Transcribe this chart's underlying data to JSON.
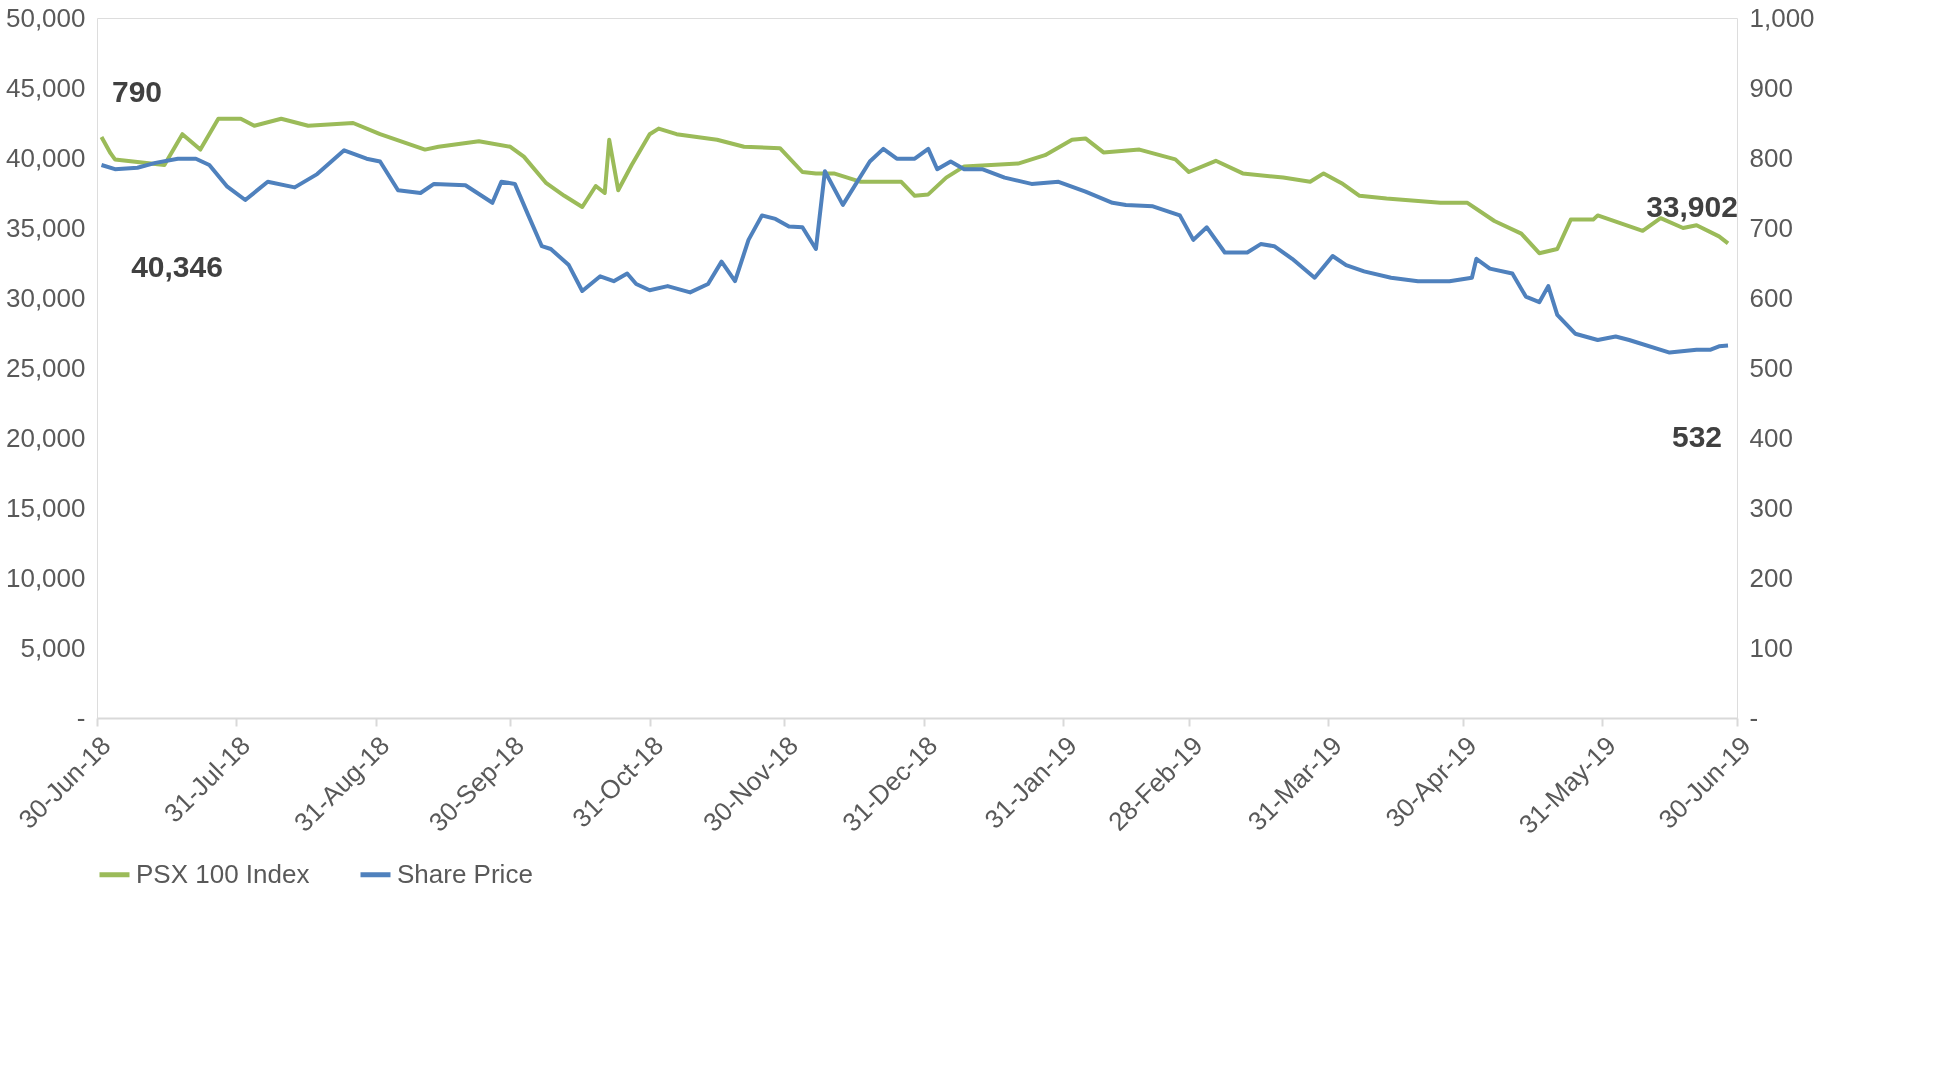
{
  "chart_data": {
    "type": "line",
    "xlim": [
      "2018-06-30",
      "2019-06-30"
    ],
    "xticks": [
      {
        "value": "2018-06-30",
        "label": "30-Jun-18"
      },
      {
        "value": "2018-07-31",
        "label": "31-Jul-18"
      },
      {
        "value": "2018-08-31",
        "label": "31-Aug-18"
      },
      {
        "value": "2018-09-30",
        "label": "30-Sep-18"
      },
      {
        "value": "2018-10-31",
        "label": "31-Oct-18"
      },
      {
        "value": "2018-11-30",
        "label": "30-Nov-18"
      },
      {
        "value": "2018-12-31",
        "label": "31-Dec-18"
      },
      {
        "value": "2019-01-31",
        "label": "31-Jan-19"
      },
      {
        "value": "2019-02-28",
        "label": "28-Feb-19"
      },
      {
        "value": "2019-03-31",
        "label": "31-Mar-19"
      },
      {
        "value": "2019-04-30",
        "label": "30-Apr-19"
      },
      {
        "value": "2019-05-31",
        "label": "31-May-19"
      },
      {
        "value": "2019-06-30",
        "label": "30-Jun-19"
      }
    ],
    "ylim": [
      0,
      50000
    ],
    "yticks": [
      {
        "value": 0,
        "label": "-"
      },
      {
        "value": 5000,
        "label": "5,000"
      },
      {
        "value": 10000,
        "label": "10,000"
      },
      {
        "value": 15000,
        "label": "15,000"
      },
      {
        "value": 20000,
        "label": "20,000"
      },
      {
        "value": 25000,
        "label": "25,000"
      },
      {
        "value": 30000,
        "label": "30,000"
      },
      {
        "value": 35000,
        "label": "35,000"
      },
      {
        "value": 40000,
        "label": "40,000"
      },
      {
        "value": 45000,
        "label": "45,000"
      },
      {
        "value": 50000,
        "label": "50,000"
      }
    ],
    "y2lim": [
      0,
      1000
    ],
    "y2ticks": [
      {
        "value": 0,
        "label": "-"
      },
      100,
      200,
      300,
      400,
      500,
      600,
      700,
      800,
      900,
      {
        "value": 1000,
        "label": "1,000"
      }
    ],
    "grid": false,
    "legend": "bottom",
    "line_style": "solid",
    "marker": "none",
    "annotations": [
      "790",
      "40,346",
      "33,902",
      "532"
    ],
    "series": [
      {
        "name": "PSX 100 Index",
        "color": "#9bbb59",
        "x": [
          "2018-07-01",
          "2018-07-03",
          "2018-07-04",
          "2018-07-15",
          "2018-07-19",
          "2018-07-23",
          "2018-07-27",
          "2018-08-01",
          "2018-08-04",
          "2018-08-10",
          "2018-08-16",
          "2018-08-26",
          "2018-09-01",
          "2018-09-11",
          "2018-09-14",
          "2018-09-23",
          "2018-09-30",
          "2018-10-03",
          "2018-10-08",
          "2018-10-12",
          "2018-10-16",
          "2018-10-19",
          "2018-10-21",
          "2018-10-22",
          "2018-10-24",
          "2018-10-27",
          "2018-10-31",
          "2018-11-02",
          "2018-11-06",
          "2018-11-15",
          "2018-11-21",
          "2018-11-29",
          "2018-12-04",
          "2018-12-07",
          "2018-12-11",
          "2018-12-17",
          "2018-12-26",
          "2018-12-29",
          "2019-01-01",
          "2019-01-05",
          "2019-01-09",
          "2019-01-15",
          "2019-01-21",
          "2019-01-27",
          "2019-02-02",
          "2019-02-05",
          "2019-02-09",
          "2019-02-17",
          "2019-02-25",
          "2019-02-28",
          "2019-03-06",
          "2019-03-12",
          "2019-03-21",
          "2019-03-27",
          "2019-03-30",
          "2019-04-03",
          "2019-04-07",
          "2019-04-13",
          "2019-04-25",
          "2019-05-01",
          "2019-05-07",
          "2019-05-13",
          "2019-05-17",
          "2019-05-21",
          "2019-05-24",
          "2019-05-29",
          "2019-05-30",
          "2019-06-09",
          "2019-06-13",
          "2019-06-18",
          "2019-06-21",
          "2019-06-26",
          "2019-06-28"
        ],
        "values": [
          41500,
          40346,
          39900,
          39500,
          41700,
          40600,
          42800,
          42800,
          42300,
          42800,
          42300,
          42500,
          41700,
          40600,
          40800,
          41200,
          40800,
          40100,
          38200,
          37300,
          36500,
          38000,
          37500,
          41300,
          37700,
          39500,
          41700,
          42100,
          41700,
          41300,
          40800,
          40700,
          39000,
          38900,
          38900,
          38300,
          38300,
          37300,
          37400,
          38600,
          39400,
          39500,
          39600,
          40200,
          41300,
          41400,
          40400,
          40600,
          39900,
          39000,
          39800,
          38900,
          38600,
          38300,
          38900,
          38200,
          37300,
          37100,
          36800,
          36800,
          35500,
          34600,
          33200,
          33500,
          35600,
          35600,
          35900,
          34800,
          35700,
          35000,
          35200,
          34400,
          33902
        ]
      },
      {
        "name": "Share Price",
        "color": "#4f81bd",
        "axis": "y2",
        "x": [
          "2018-07-01",
          "2018-07-04",
          "2018-07-09",
          "2018-07-13",
          "2018-07-18",
          "2018-07-22",
          "2018-07-25",
          "2018-07-29",
          "2018-08-02",
          "2018-08-07",
          "2018-08-13",
          "2018-08-18",
          "2018-08-24",
          "2018-08-29",
          "2018-09-01",
          "2018-09-05",
          "2018-09-10",
          "2018-09-13",
          "2018-09-20",
          "2018-09-26",
          "2018-09-28",
          "2018-10-01",
          "2018-10-04",
          "2018-10-07",
          "2018-10-09",
          "2018-10-13",
          "2018-10-16",
          "2018-10-20",
          "2018-10-23",
          "2018-10-26",
          "2018-10-28",
          "2018-10-31",
          "2018-11-04",
          "2018-11-09",
          "2018-11-13",
          "2018-11-16",
          "2018-11-19",
          "2018-11-22",
          "2018-11-25",
          "2018-11-28",
          "2018-12-01",
          "2018-12-04",
          "2018-12-07",
          "2018-12-09",
          "2018-12-13",
          "2018-12-19",
          "2018-12-22",
          "2018-12-25",
          "2018-12-29",
          "2019-01-01",
          "2019-01-03",
          "2019-01-06",
          "2019-01-09",
          "2019-01-13",
          "2019-01-18",
          "2019-01-24",
          "2019-01-30",
          "2019-02-05",
          "2019-02-11",
          "2019-02-14",
          "2019-02-20",
          "2019-02-26",
          "2019-03-01",
          "2019-03-04",
          "2019-03-08",
          "2019-03-13",
          "2019-03-16",
          "2019-03-19",
          "2019-03-23",
          "2019-03-28",
          "2019-04-01",
          "2019-04-04",
          "2019-04-08",
          "2019-04-14",
          "2019-04-20",
          "2019-04-27",
          "2019-05-02",
          "2019-05-03",
          "2019-05-06",
          "2019-05-11",
          "2019-05-14",
          "2019-05-17",
          "2019-05-19",
          "2019-05-21",
          "2019-05-25",
          "2019-05-30",
          "2019-06-03",
          "2019-06-06",
          "2019-06-15",
          "2019-06-21",
          "2019-06-24",
          "2019-06-26",
          "2019-06-28"
        ],
        "values": [
          790,
          784,
          786,
          793,
          799,
          799,
          790,
          759,
          740,
          766,
          758,
          777,
          811,
          799,
          795,
          754,
          750,
          763,
          761,
          736,
          766,
          763,
          718,
          674,
          670,
          647,
          610,
          631,
          624,
          635,
          620,
          611,
          617,
          608,
          620,
          652,
          624,
          683,
          718,
          713,
          702,
          701,
          670,
          781,
          733,
          795,
          813,
          799,
          799,
          813,
          784,
          795,
          784,
          784,
          772,
          763,
          766,
          752,
          736,
          733,
          731,
          718,
          683,
          701,
          665,
          665,
          677,
          674,
          656,
          629,
          660,
          647,
          638,
          629,
          624,
          624,
          629,
          656,
          642,
          635,
          602,
          594,
          617,
          576,
          549,
          540,
          545,
          540,
          522,
          526,
          526,
          531,
          532
        ]
      }
    ]
  }
}
